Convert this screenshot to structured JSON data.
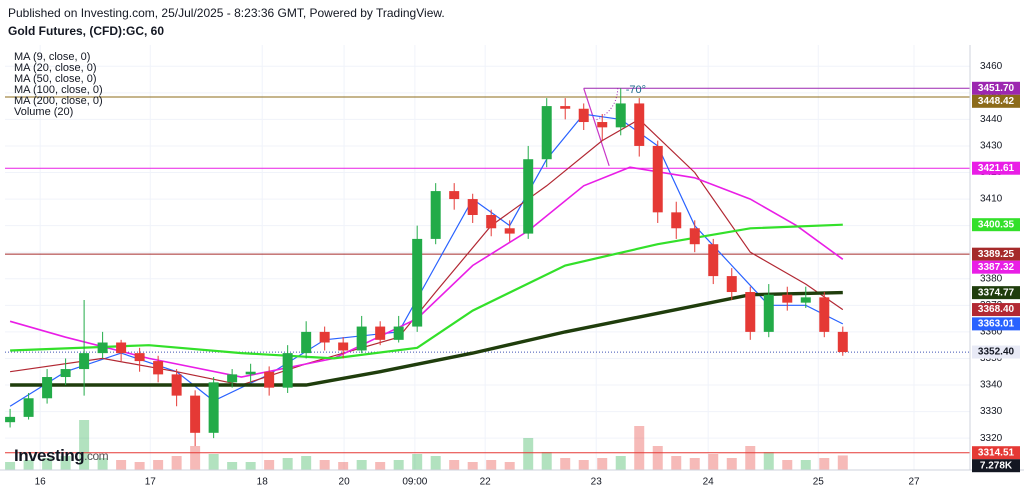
{
  "header": {
    "published": "Published on Investing.com, 25/Jul/2025 - 8:23:36 GMT, Powered by TradingView.",
    "symbol": "Gold Futures, (CFD):GC, 60"
  },
  "logo": {
    "name": "Investing",
    "suffix": ".com"
  },
  "chart_data": {
    "type": "candlestick",
    "up_color": "#22ab48",
    "down_color": "#e53935",
    "x": [
      0,
      4,
      8,
      12,
      16,
      20,
      24,
      28,
      32,
      36,
      40,
      44,
      48,
      52,
      56,
      60,
      64,
      68,
      72,
      76,
      80,
      84,
      88,
      92,
      96,
      100,
      104,
      108,
      112,
      116,
      120,
      124,
      128,
      132,
      136,
      140,
      144,
      148,
      152,
      156,
      160,
      164,
      168,
      172,
      176,
      180
    ],
    "open": [
      3326,
      3328,
      3335,
      3343,
      3346,
      3352,
      3356,
      3352,
      3349,
      3344,
      3336,
      3322,
      3341,
      3344,
      3345,
      3339,
      3352,
      3360,
      3356,
      3353,
      3362,
      3357,
      3362,
      3395,
      3413,
      3410,
      3404,
      3399,
      3397,
      3425,
      3445,
      3444,
      3439,
      3437,
      3446,
      3430,
      3405,
      3399,
      3393,
      3381,
      3375,
      3360,
      3374,
      3371,
      3373,
      3360
    ],
    "high": [
      3331,
      3337,
      3346,
      3350,
      3372,
      3360,
      3357,
      3354,
      3351,
      3346,
      3338,
      3343,
      3346,
      3348,
      3347,
      3355,
      3364,
      3362,
      3358,
      3366,
      3364,
      3366,
      3400,
      3416,
      3416,
      3412,
      3406,
      3402,
      3430,
      3448,
      3448,
      3446,
      3442,
      3451.7,
      3448,
      3432,
      3409,
      3402,
      3395,
      3384,
      3377,
      3378,
      3377,
      3377,
      3375,
      3362
    ],
    "low": [
      3324,
      3327,
      3333,
      3340,
      3336,
      3350,
      3349,
      3345,
      3341,
      3332,
      3317,
      3320,
      3339,
      3341,
      3336,
      3337,
      3350,
      3353,
      3350,
      3352,
      3355,
      3356,
      3360,
      3393,
      3406,
      3401,
      3396,
      3394,
      3395,
      3422,
      3440,
      3436,
      3432,
      3434,
      3426,
      3401,
      3395,
      3390,
      3378,
      3372,
      3357,
      3358,
      3368,
      3369,
      3358,
      3351
    ],
    "close": [
      3328,
      3335,
      3343,
      3346,
      3352,
      3356,
      3352,
      3349,
      3344,
      3336,
      3322,
      3341,
      3344,
      3345,
      3339,
      3352,
      3360,
      3356,
      3353,
      3362,
      3357,
      3362,
      3395,
      3413,
      3410,
      3404,
      3399,
      3397,
      3425,
      3445,
      3444,
      3439,
      3437,
      3446,
      3430,
      3405,
      3399,
      3393,
      3381,
      3375,
      3360,
      3374,
      3371,
      3373,
      3360,
      3352.4
    ],
    "volume": [
      4,
      5,
      6,
      7,
      25,
      6,
      5,
      4,
      5,
      7,
      12,
      8,
      4,
      4,
      5,
      6,
      7,
      5,
      4,
      5,
      4,
      5,
      8,
      7,
      5,
      4,
      5,
      4,
      16,
      9,
      6,
      5,
      6,
      7,
      22,
      12,
      7,
      6,
      8,
      6,
      12,
      9,
      5,
      5,
      6,
      7.278
    ],
    "volume_label": {
      "value": 7.278,
      "label": "7.278K"
    },
    "vlim": [
      0,
      30
    ],
    "last_label": {
      "value": 3352.4,
      "label": "3352.40"
    },
    "series": [
      {
        "name": "MA (9, close, 0)",
        "color": "#2962ff",
        "width": 1.2,
        "x": [
          0,
          12,
          24,
          36,
          44,
          56,
          68,
          84,
          92,
          100,
          108,
          116,
          124,
          132,
          140,
          148,
          156,
          164,
          172,
          180
        ],
        "values": [
          3332,
          3345,
          3352,
          3345,
          3334,
          3344,
          3357,
          3360,
          3385,
          3410,
          3400,
          3425,
          3442,
          3440,
          3430,
          3400,
          3385,
          3370,
          3370,
          3363.01
        ],
        "end_label": "3363.01"
      },
      {
        "name": "MA (20, close, 0)",
        "color": "#b22833",
        "width": 1.2,
        "x": [
          0,
          20,
          36,
          50,
          64,
          84,
          92,
          104,
          116,
          128,
          136,
          148,
          160,
          172,
          180
        ],
        "values": [
          3345,
          3350,
          3345,
          3340,
          3348,
          3358,
          3375,
          3400,
          3415,
          3432,
          3440,
          3420,
          3390,
          3378,
          3368.4
        ],
        "end_label": "3368.40"
      },
      {
        "name": "MA (50, close, 0)",
        "color": "#e91ee6",
        "width": 1.6,
        "x": [
          0,
          12,
          30,
          50,
          70,
          88,
          100,
          112,
          124,
          134,
          148,
          160,
          170,
          180
        ],
        "values": [
          3364,
          3358,
          3350,
          3343,
          3350,
          3365,
          3385,
          3398,
          3415,
          3422,
          3418,
          3410,
          3400,
          3387.32
        ],
        "end_label": "3387.32"
      },
      {
        "name": "MA (100, close, 0)",
        "color": "#33e02a",
        "width": 2.2,
        "x": [
          0,
          30,
          50,
          70,
          88,
          100,
          120,
          140,
          160,
          180
        ],
        "values": [
          3353,
          3355,
          3352,
          3350,
          3354,
          3368,
          3385,
          3393,
          3399,
          3400.35
        ],
        "end_label": "3400.35"
      },
      {
        "name": "MA (200, close, 0)",
        "color": "#1f3d0c",
        "width": 3.4,
        "x": [
          0,
          40,
          64,
          80,
          100,
          120,
          140,
          160,
          180
        ],
        "values": [
          3340,
          3340,
          3340,
          3345,
          3352,
          3360,
          3367,
          3374,
          3374.77
        ],
        "end_label": "3374.77"
      }
    ],
    "volume_legend": "Volume (20)",
    "levels": [
      {
        "value": 3451.7,
        "label": "3451.70",
        "color": "#9c27b0",
        "from_x": 124
      },
      {
        "value": 3448.42,
        "label": "3448.42",
        "color": "#8c6b1a"
      },
      {
        "value": 3421.61,
        "label": "3421.61",
        "color": "#e91ee6"
      },
      {
        "value": 3389.25,
        "label": "3389.25",
        "color": "#a52a2a"
      },
      {
        "value": 3314.51,
        "label": "3314.51",
        "color": "#e53935"
      }
    ],
    "annotation": {
      "text": "-70°",
      "x": 124,
      "y": 3451.7,
      "x2": 129.5,
      "y2": 3422.5
    },
    "ylim": [
      3308,
      3468
    ],
    "yticks": [
      3320,
      3330,
      3340,
      3350,
      3360,
      3370,
      3380,
      3390,
      3400,
      3410,
      3420,
      3430,
      3440,
      3450,
      3460
    ],
    "xlim": [
      -1.1,
      207.5
    ],
    "xticks": [
      {
        "value": 6.5,
        "label": "16"
      },
      {
        "value": 30.3,
        "label": "17"
      },
      {
        "value": 54.5,
        "label": "18"
      },
      {
        "value": 72.2,
        "label": "20"
      },
      {
        "value": 87.5,
        "label": "09:00"
      },
      {
        "value": 102.7,
        "label": "22"
      },
      {
        "value": 126.7,
        "label": "23"
      },
      {
        "value": 150.9,
        "label": "24"
      },
      {
        "value": 174.7,
        "label": "25"
      },
      {
        "value": 195.4,
        "label": "27"
      }
    ],
    "grid": true
  }
}
